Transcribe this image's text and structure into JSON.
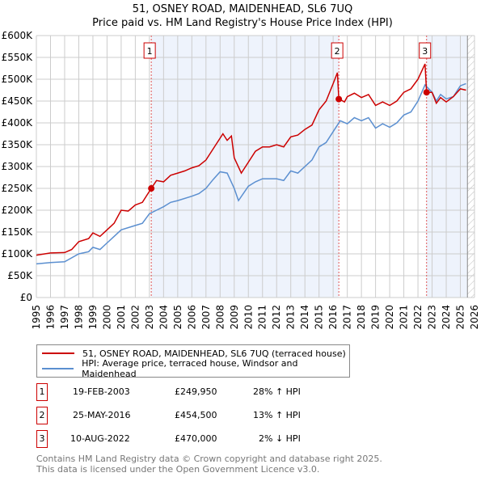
{
  "chart_data": {
    "type": "line",
    "title": "51, OSNEY ROAD, MAIDENHEAD, SL6 7UQ",
    "subtitle": "Price paid vs. HM Land Registry's House Price Index (HPI)",
    "xlim": [
      1995,
      2026
    ],
    "ylim": [
      0,
      600000
    ],
    "x_ticks": [
      "1995",
      "1996",
      "1997",
      "1998",
      "1999",
      "2000",
      "2001",
      "2002",
      "2003",
      "2004",
      "2005",
      "2006",
      "2007",
      "2008",
      "2009",
      "2010",
      "2011",
      "2012",
      "2013",
      "2014",
      "2015",
      "2016",
      "2017",
      "2018",
      "2019",
      "2020",
      "2021",
      "2022",
      "2023",
      "2024",
      "2025",
      "2026"
    ],
    "y_ticks": [
      "£0",
      "£50K",
      "£100K",
      "£150K",
      "£200K",
      "£250K",
      "£300K",
      "£350K",
      "£400K",
      "£450K",
      "£500K",
      "£550K",
      "£600K"
    ],
    "grid": true,
    "series": [
      {
        "name": "51, OSNEY ROAD, MAIDENHEAD, SL6 7UQ (terraced house)",
        "color": "#cc0000",
        "points": [
          [
            1995,
            97
          ],
          [
            1996,
            102
          ],
          [
            1997,
            103
          ],
          [
            1997.5,
            110
          ],
          [
            1998,
            128
          ],
          [
            1998.7,
            135
          ],
          [
            1999,
            148
          ],
          [
            1999.5,
            140
          ],
          [
            2000,
            155
          ],
          [
            2000.5,
            170
          ],
          [
            2001,
            200
          ],
          [
            2001.5,
            198
          ],
          [
            2002,
            212
          ],
          [
            2002.5,
            218
          ],
          [
            2003.13,
            250
          ],
          [
            2003.5,
            268
          ],
          [
            2004,
            265
          ],
          [
            2004.5,
            280
          ],
          [
            2005,
            285
          ],
          [
            2005.5,
            290
          ],
          [
            2006,
            297
          ],
          [
            2006.5,
            302
          ],
          [
            2007,
            315
          ],
          [
            2007.5,
            340
          ],
          [
            2008,
            365
          ],
          [
            2008.2,
            375
          ],
          [
            2008.5,
            360
          ],
          [
            2008.8,
            370
          ],
          [
            2009,
            320
          ],
          [
            2009.5,
            285
          ],
          [
            2010,
            310
          ],
          [
            2010.5,
            335
          ],
          [
            2011,
            345
          ],
          [
            2011.5,
            345
          ],
          [
            2012,
            350
          ],
          [
            2012.5,
            345
          ],
          [
            2013,
            368
          ],
          [
            2013.5,
            372
          ],
          [
            2014,
            385
          ],
          [
            2014.5,
            395
          ],
          [
            2015,
            430
          ],
          [
            2015.5,
            450
          ],
          [
            2016,
            490
          ],
          [
            2016.3,
            515
          ],
          [
            2016.4,
            455
          ],
          [
            2016.8,
            448
          ],
          [
            2017,
            460
          ],
          [
            2017.5,
            468
          ],
          [
            2018,
            458
          ],
          [
            2018.5,
            465
          ],
          [
            2019,
            440
          ],
          [
            2019.5,
            448
          ],
          [
            2020,
            440
          ],
          [
            2020.5,
            450
          ],
          [
            2021,
            470
          ],
          [
            2021.5,
            478
          ],
          [
            2022,
            500
          ],
          [
            2022.5,
            535
          ],
          [
            2022.61,
            470
          ],
          [
            2023,
            470
          ],
          [
            2023.3,
            445
          ],
          [
            2023.6,
            458
          ],
          [
            2024,
            448
          ],
          [
            2024.5,
            460
          ],
          [
            2025,
            478
          ],
          [
            2025.4,
            475
          ]
        ]
      },
      {
        "name": "HPI: Average price, terraced house, Windsor and Maidenhead",
        "color": "#5b8fd0",
        "points": [
          [
            1995,
            77
          ],
          [
            1996,
            80
          ],
          [
            1997,
            82
          ],
          [
            1998,
            100
          ],
          [
            1998.7,
            105
          ],
          [
            1999,
            115
          ],
          [
            1999.5,
            110
          ],
          [
            2000,
            125
          ],
          [
            2000.5,
            140
          ],
          [
            2001,
            155
          ],
          [
            2002,
            165
          ],
          [
            2002.5,
            170
          ],
          [
            2003,
            192
          ],
          [
            2003.5,
            200
          ],
          [
            2004,
            208
          ],
          [
            2004.5,
            218
          ],
          [
            2005,
            222
          ],
          [
            2006,
            232
          ],
          [
            2006.5,
            238
          ],
          [
            2007,
            250
          ],
          [
            2007.5,
            270
          ],
          [
            2008,
            288
          ],
          [
            2008.5,
            285
          ],
          [
            2009,
            250
          ],
          [
            2009.3,
            222
          ],
          [
            2010,
            255
          ],
          [
            2010.5,
            265
          ],
          [
            2011,
            272
          ],
          [
            2012,
            272
          ],
          [
            2012.5,
            268
          ],
          [
            2013,
            290
          ],
          [
            2013.5,
            285
          ],
          [
            2014,
            300
          ],
          [
            2014.5,
            315
          ],
          [
            2015,
            345
          ],
          [
            2015.5,
            355
          ],
          [
            2016,
            380
          ],
          [
            2016.5,
            405
          ],
          [
            2017,
            398
          ],
          [
            2017.5,
            412
          ],
          [
            2018,
            405
          ],
          [
            2018.5,
            412
          ],
          [
            2019,
            388
          ],
          [
            2019.5,
            398
          ],
          [
            2020,
            390
          ],
          [
            2020.5,
            400
          ],
          [
            2021,
            418
          ],
          [
            2021.5,
            425
          ],
          [
            2022,
            450
          ],
          [
            2022.5,
            487
          ],
          [
            2023,
            470
          ],
          [
            2023.3,
            450
          ],
          [
            2023.6,
            465
          ],
          [
            2024,
            455
          ],
          [
            2024.5,
            460
          ],
          [
            2025,
            485
          ],
          [
            2025.4,
            490
          ]
        ]
      }
    ],
    "sales": [
      {
        "label": "1",
        "x": 2003.13,
        "price": 249950,
        "date": "19-FEB-2003",
        "price_text": "£249,950",
        "hpi": "28% ↑ HPI"
      },
      {
        "label": "2",
        "x": 2016.4,
        "price": 454500,
        "date": "25-MAY-2016",
        "price_text": "£454,500",
        "hpi": "13% ↑ HPI"
      },
      {
        "label": "3",
        "x": 2022.61,
        "price": 470000,
        "date": "10-AUG-2022",
        "price_text": "£470,000",
        "hpi": "2% ↓ HPI"
      }
    ]
  },
  "footer": {
    "line1": "Contains HM Land Registry data © Crown copyright and database right 2025.",
    "line2": "This data is licensed under the Open Government Licence v3.0."
  }
}
